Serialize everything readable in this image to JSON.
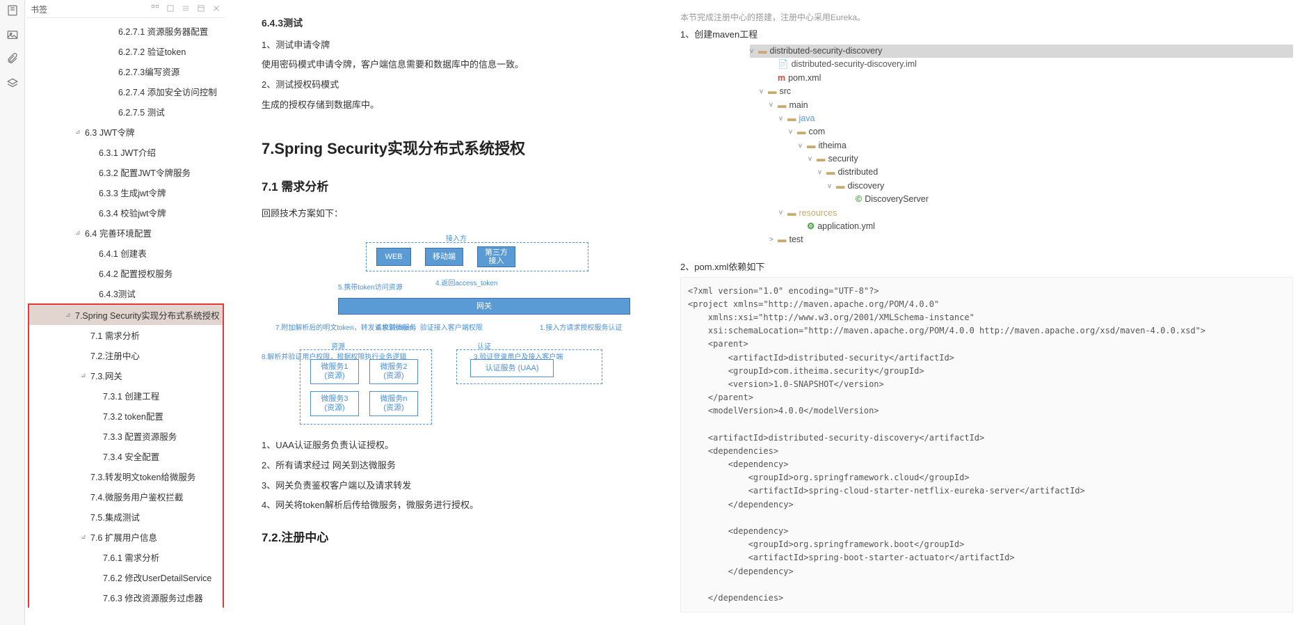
{
  "sidebar": {
    "title": "书签",
    "items": [
      {
        "lvl": "ind2",
        "txt": "6.2.7.1 资源服务器配置"
      },
      {
        "lvl": "ind2",
        "txt": "6.2.7.2 验证token"
      },
      {
        "lvl": "ind2",
        "txt": "6.2.7.3编写资源"
      },
      {
        "lvl": "ind2",
        "txt": "6.2.7.4 添加安全访问控制"
      },
      {
        "lvl": "ind2",
        "txt": "6.2.7.5 测试"
      },
      {
        "lvl": "ind0",
        "txt": "6.3 JWT令牌",
        "tw": "⊿"
      },
      {
        "lvl": "ind1",
        "txt": "6.3.1 JWT介绍"
      },
      {
        "lvl": "ind1",
        "txt": "6.3.2 配置JWT令牌服务"
      },
      {
        "lvl": "ind1",
        "txt": "6.3.3 生成jwt令牌"
      },
      {
        "lvl": "ind1",
        "txt": "6.3.4 校验jwt令牌"
      },
      {
        "lvl": "ind0",
        "txt": "6.4 完善环境配置",
        "tw": "⊿"
      },
      {
        "lvl": "ind1",
        "txt": "6.4.1 创建表"
      },
      {
        "lvl": "ind1",
        "txt": "6.4.2 配置授权服务"
      },
      {
        "lvl": "ind1",
        "txt": "6.4.3测试"
      }
    ],
    "reditems": [
      {
        "lvl": "ind3",
        "txt": "7.Spring Security实现分布式系统授权",
        "tw": "⊿",
        "sel": true
      },
      {
        "lvl": "ind4",
        "txt": "7.1 需求分析"
      },
      {
        "lvl": "ind4",
        "txt": "7.2.注册中心"
      },
      {
        "lvl": "ind4",
        "txt": "7.3.网关",
        "tw": "⊿"
      },
      {
        "lvl": "ind5",
        "txt": "7.3.1 创建工程"
      },
      {
        "lvl": "ind5",
        "txt": "7.3.2 token配置"
      },
      {
        "lvl": "ind5",
        "txt": "7.3.3 配置资源服务"
      },
      {
        "lvl": "ind5",
        "txt": "7.3.4 安全配置"
      },
      {
        "lvl": "ind4",
        "txt": "7.3.转发明文token给微服务"
      },
      {
        "lvl": "ind4",
        "txt": "7.4.微服务用户鉴权拦截"
      },
      {
        "lvl": "ind4",
        "txt": "7.5.集成测试"
      },
      {
        "lvl": "ind4",
        "txt": "7.6 扩展用户信息",
        "tw": "⊿"
      },
      {
        "lvl": "ind5",
        "txt": "7.6.1 需求分析"
      },
      {
        "lvl": "ind5",
        "txt": "7.6.2 修改UserDetailService"
      },
      {
        "lvl": "ind5",
        "txt": "7.6.3 修改资源服务过虑器"
      }
    ]
  },
  "doc": {
    "h643": "6.4.3测试",
    "t1": "1、测试申请令牌",
    "t2": "使用密码模式申请令牌，客户端信息需要和数据库中的信息一致。",
    "t3": "2、测试授权码模式",
    "t4": "生成的授权存储到数据库中。",
    "h7": "7.Spring Security实现分布式系统授权",
    "h71": "7.1 需求分析",
    "t5": "回顾技术方案如下：",
    "l1": "1、UAA认证服务负责认证授权。",
    "l2": "2、所有请求经过 网关到达微服务",
    "l3": "3、网关负责鉴权客户端以及请求转发",
    "l4": "4、网关将token解析后传给微服务，微服务进行授权。",
    "h72": "7.2.注册中心"
  },
  "diagram": {
    "access": "接入方",
    "web": "WEB",
    "mobile": "移动端",
    "third": "第三方\n接入",
    "gateway": "网关",
    "res": "资源",
    "auth": "认证",
    "ms1": "微服务1\n(资源)",
    "ms2": "微服务2\n(资源)",
    "ms3": "微服务3\n(资源)",
    "msn": "微服务n\n(资源)",
    "uaa": "认证服务 (UAA)",
    "lbl1": "5.携带token访问资源",
    "lbl2": "4.返回access_token",
    "lbl3": "7.附加解析后的明文token，转发请求到微服务",
    "lbl4": "6.校验token，验证接入客户端权限",
    "lbl5": "1.接入方请求授权服务认证",
    "lbl6": "8.解析并验证用户权限，根据权限执行业务逻辑",
    "lbl7": "3.验证登录用户及接入客户端",
    "col_blue": "#4a90d9",
    "col_dark": "#3b6fa8",
    "col_fill": "#5b9bd5"
  },
  "right": {
    "top": "本节完成注册中心的搭建，注册中心采用Eureka。",
    "s1": "1、创建maven工程",
    "ftree": [
      {
        "pad": 0,
        "tw": "v",
        "ic": "📁",
        "txt": "distributed-security-discovery",
        "hl": true
      },
      {
        "pad": 28,
        "ic": "📄",
        "txt": "distributed-security-discovery.iml",
        "c": "#555"
      },
      {
        "pad": 28,
        "ic": "m",
        "txt": "pom.xml",
        "ico": "#d04a3a"
      },
      {
        "pad": 14,
        "tw": "v",
        "ic": "📁",
        "txt": "src"
      },
      {
        "pad": 28,
        "tw": "v",
        "ic": "📁",
        "txt": "main"
      },
      {
        "pad": 42,
        "tw": "v",
        "ic": "📁",
        "txt": "java",
        "c": "#5b9bd5"
      },
      {
        "pad": 56,
        "tw": "v",
        "ic": "📁",
        "txt": "com"
      },
      {
        "pad": 70,
        "tw": "v",
        "ic": "📁",
        "txt": "itheima"
      },
      {
        "pad": 84,
        "tw": "v",
        "ic": "📁",
        "txt": "security"
      },
      {
        "pad": 98,
        "tw": "v",
        "ic": "📁",
        "txt": "distributed"
      },
      {
        "pad": 112,
        "tw": "v",
        "ic": "📁",
        "txt": "discovery"
      },
      {
        "pad": 140,
        "ic": "©",
        "txt": "DiscoveryServer",
        "ico": "#3a9e3a"
      },
      {
        "pad": 42,
        "tw": "v",
        "ic": "📁",
        "txt": "resources",
        "c": "#c9a96e"
      },
      {
        "pad": 70,
        "ic": "⚙",
        "txt": "application.yml",
        "ico": "#3a9e3a"
      },
      {
        "pad": 28,
        "tw": ">",
        "ic": "📁",
        "txt": "test"
      }
    ],
    "s2": "2、pom.xml依赖如下",
    "code": "<?xml version=\"1.0\" encoding=\"UTF-8\"?>\n<project xmlns=\"http://maven.apache.org/POM/4.0.0\"\n    xmlns:xsi=\"http://www.w3.org/2001/XMLSchema-instance\"\n    xsi:schemaLocation=\"http://maven.apache.org/POM/4.0.0 http://maven.apache.org/xsd/maven-4.0.0.xsd\">\n    <parent>\n        <artifactId>distributed-security</artifactId>\n        <groupId>com.itheima.security</groupId>\n        <version>1.0-SNAPSHOT</version>\n    </parent>\n    <modelVersion>4.0.0</modelVersion>\n\n    <artifactId>distributed-security-discovery</artifactId>\n    <dependencies>\n        <dependency>\n            <groupId>org.springframework.cloud</groupId>\n            <artifactId>spring-cloud-starter-netflix-eureka-server</artifactId>\n        </dependency>\n\n        <dependency>\n            <groupId>org.springframework.boot</groupId>\n            <artifactId>spring-boot-starter-actuator</artifactId>\n        </dependency>\n\n    </dependencies>"
  }
}
